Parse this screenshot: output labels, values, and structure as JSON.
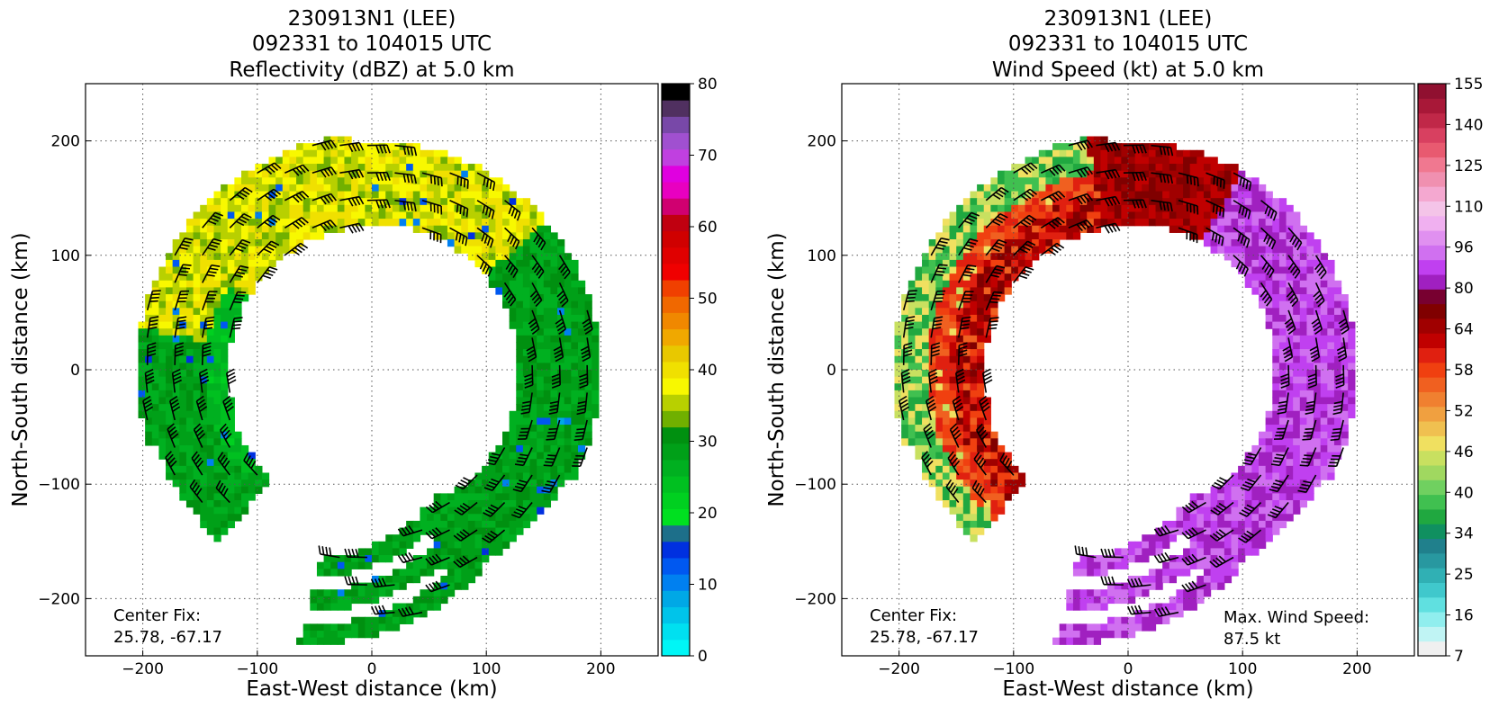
{
  "colors": {
    "reflectivity_scale": [
      "#00f6f6",
      "#00e0f0",
      "#00c4ea",
      "#00a8e6",
      "#0080f0",
      "#0058f0",
      "#0030e0",
      "#1d6f8a",
      "#00e020",
      "#00d020",
      "#00c020",
      "#00b020",
      "#00a018",
      "#009010",
      "#70b000",
      "#b8d000",
      "#f8f800",
      "#f0e000",
      "#e8c800",
      "#f0a800",
      "#f08800",
      "#f06800",
      "#f04000",
      "#f00000",
      "#e00000",
      "#d00000",
      "#c00010",
      "#d00070",
      "#e800c0",
      "#e000e0",
      "#c040e0",
      "#a050d0",
      "#7848a8",
      "#503060",
      "#000000"
    ],
    "wind_scale": [
      "#f0f0f0",
      "#c0f4f4",
      "#90eeee",
      "#60e0e0",
      "#40c8cc",
      "#30b0b4",
      "#2898a0",
      "#20808c",
      "#109060",
      "#20a840",
      "#40c050",
      "#70d060",
      "#a0d860",
      "#c8e060",
      "#f0e060",
      "#f0c050",
      "#f0a040",
      "#f08030",
      "#f06020",
      "#f04010",
      "#e02010",
      "#c00000",
      "#a00000",
      "#800000",
      "#780030",
      "#a020c0",
      "#c040f0",
      "#d070f0",
      "#e090f0",
      "#f0b0f0",
      "#f4c4e8",
      "#f4a8d0",
      "#f090b0",
      "#f07890",
      "#e85a70",
      "#d84060",
      "#c02848",
      "#a81838",
      "#901030"
    ],
    "dry_marker_blue": "#2040e0"
  },
  "left_panel": {
    "title_line1": "230913N1 (LEE)",
    "title_line2": "092331 to 104015 UTC",
    "title_line3": "Reflectivity (dBZ) at 5.0 km",
    "xlabel": "East-West distance (km)",
    "ylabel": "North-South distance (km)",
    "annotation_line1": "Center Fix:",
    "annotation_line2": "25.78, -67.17",
    "colorbar_ticks": [
      "0",
      "10",
      "20",
      "30",
      "40",
      "50",
      "60",
      "70",
      "80"
    ]
  },
  "right_panel": {
    "title_line1": "230913N1 (LEE)",
    "title_line2": "092331 to 104015 UTC",
    "title_line3": "Wind Speed (kt) at 5.0 km",
    "xlabel": "East-West distance (km)",
    "ylabel": "North-South distance (km)",
    "annotation_line1": "Center Fix:",
    "annotation_line2": "25.78, -67.17",
    "max_wind_line1": "Max. Wind Speed:",
    "max_wind_line2": "87.5 kt",
    "colorbar_ticks": [
      "7",
      "16",
      "25",
      "34",
      "40",
      "46",
      "52",
      "58",
      "64",
      "80",
      "96",
      "110",
      "125",
      "140",
      "155"
    ]
  },
  "chart_data": [
    {
      "type": "heatmap",
      "title": "230913N1 (LEE) 092331 to 104015 UTC Reflectivity (dBZ) at 5.0 km",
      "xlabel": "East-West distance (km)",
      "ylabel": "North-South distance (km)",
      "xlim": [
        -250,
        250
      ],
      "ylim": [
        -250,
        250
      ],
      "xticks": [
        -200,
        -100,
        0,
        100,
        200
      ],
      "yticks": [
        -200,
        -100,
        0,
        100,
        200
      ],
      "grid": true,
      "center_fix": "25.78, -67.17",
      "colorbar": {
        "label": "Reflectivity (dBZ)",
        "range": [
          0,
          80
        ],
        "ticks": [
          0,
          10,
          20,
          30,
          40,
          50,
          60,
          70,
          80
        ]
      },
      "field_description_values": {
        "typical_band_dBZ": [
          20,
          40
        ],
        "eyewall_radius_km": [
          120,
          200
        ]
      }
    },
    {
      "type": "heatmap",
      "title": "230913N1 (LEE) 092331 to 104015 UTC Wind Speed (kt) at 5.0 km",
      "xlabel": "East-West distance (km)",
      "ylabel": "North-South distance (km)",
      "xlim": [
        -250,
        250
      ],
      "ylim": [
        -250,
        250
      ],
      "xticks": [
        -200,
        -100,
        0,
        100,
        200
      ],
      "yticks": [
        -200,
        -100,
        0,
        100,
        200
      ],
      "grid": true,
      "center_fix": "25.78, -67.17",
      "max_wind_speed_kt": 87.5,
      "colorbar": {
        "label": "Wind Speed (kt)",
        "ticks": [
          7,
          16,
          25,
          34,
          40,
          46,
          52,
          58,
          64,
          80,
          96,
          110,
          125,
          140,
          155
        ]
      }
    }
  ]
}
